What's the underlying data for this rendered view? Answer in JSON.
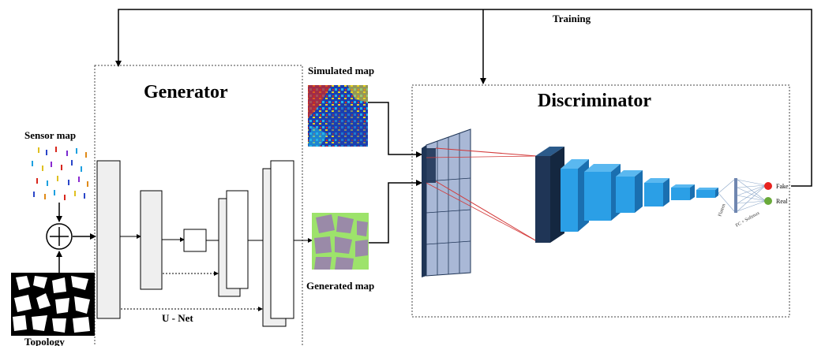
{
  "labels": {
    "training": "Training",
    "generator": "Generator",
    "discriminator": "Discriminator",
    "sensor_map": "Sensor map",
    "topology": "Topology",
    "simulated_map": "Simulated map",
    "generated_map": "Generated map",
    "unet": "U - Net",
    "flatten": "Flatten",
    "fc_softmax": "FC + Softmax",
    "fake": "Fake",
    "real": "Real"
  },
  "colors": {
    "fake_dot": "#e8231f",
    "real_dot": "#6aaa3a",
    "unet_block": "#efefef",
    "disc_dark": "#1f3556",
    "disc_light": "#2b9fe6",
    "input_grid": "#a9b8d6",
    "red_line": "#d33a3a"
  }
}
